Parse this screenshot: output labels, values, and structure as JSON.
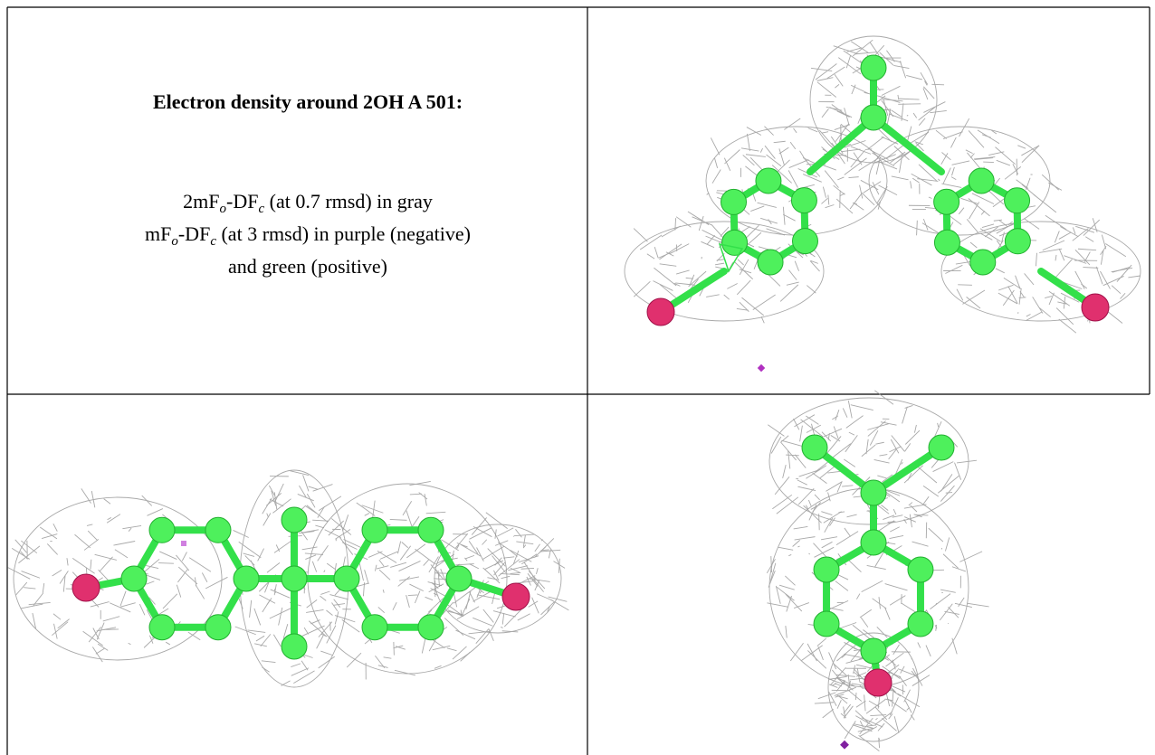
{
  "caption": {
    "title": "Electron density around 2OH A 501:",
    "lines": [
      [
        "2mF",
        "o",
        "-DF",
        "c",
        " (at 0.7 rmsd) in gray"
      ],
      [
        "mF",
        "o",
        "-DF",
        "c",
        " (at 3 rmsd) in purple (negative)"
      ],
      [
        "and green (positive)"
      ]
    ]
  }
}
